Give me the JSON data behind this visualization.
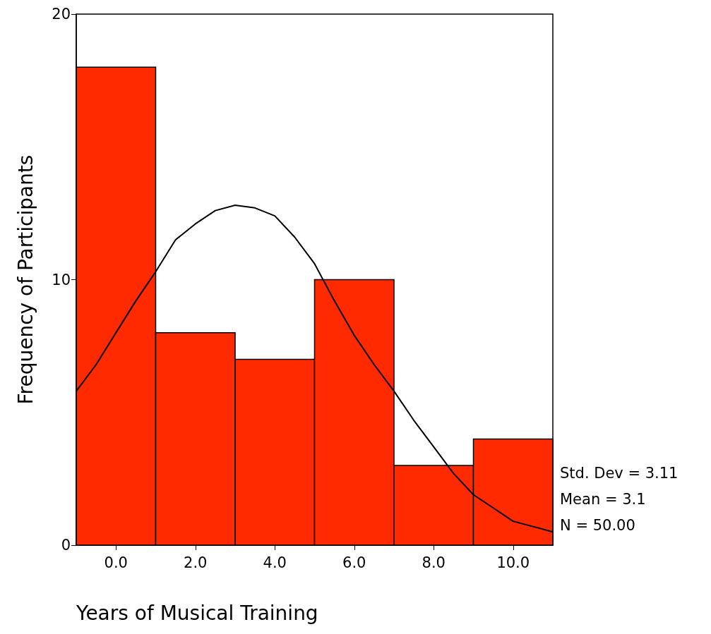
{
  "chart_data": {
    "type": "histogram",
    "xlabel": "Years of Musical Training",
    "ylabel": "Frequency of Participants",
    "xlim": [
      -1,
      11
    ],
    "xticks": [
      {
        "value": 0,
        "label": "0.0"
      },
      {
        "value": 2,
        "label": "2.0"
      },
      {
        "value": 4,
        "label": "4.0"
      },
      {
        "value": 6,
        "label": "6.0"
      },
      {
        "value": 8,
        "label": "8.0"
      },
      {
        "value": 10,
        "label": "10.0"
      }
    ],
    "ylim": [
      0,
      20
    ],
    "yticks": [
      0,
      10,
      20
    ],
    "grid": false,
    "marker": "none",
    "line_style": "solid",
    "series": [
      {
        "color": "#ff2a00",
        "bins": [
          -1,
          1,
          3,
          5,
          7,
          9,
          11
        ],
        "values": [
          18,
          8,
          7,
          10,
          3,
          4
        ]
      },
      {
        "type": "line",
        "color": "#000000",
        "x": [
          -1,
          -0.5,
          0,
          0.5,
          1,
          1.5,
          2,
          2.5,
          3,
          3.5,
          4,
          4.5,
          5,
          5.5,
          6,
          6.5,
          7,
          7.5,
          8,
          8.5,
          9,
          9.5,
          10,
          10.5,
          11
        ],
        "values": [
          5.8,
          6.8,
          8.0,
          9.2,
          10.3,
          11.5,
          12.1,
          12.6,
          12.8,
          12.7,
          12.4,
          11.6,
          10.6,
          9.2,
          7.9,
          6.8,
          5.8,
          4.7,
          3.7,
          2.7,
          1.9,
          1.4,
          0.9,
          0.7,
          0.5
        ]
      }
    ],
    "annotations": [
      "Std. Dev = 3.11",
      "Mean = 3.1",
      "N = 50.00"
    ]
  }
}
